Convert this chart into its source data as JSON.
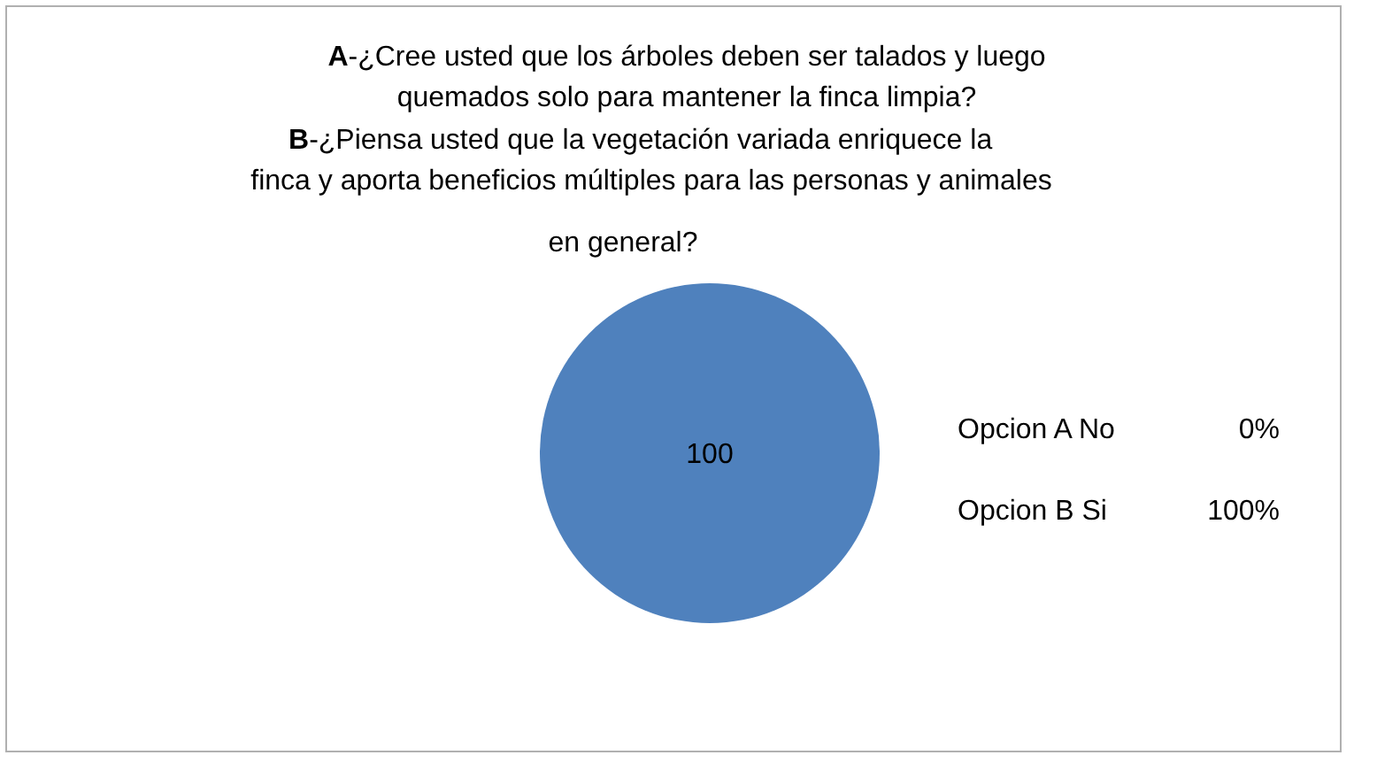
{
  "chart_data": {
    "type": "pie",
    "title": "A-¿Cree usted que los árboles deben ser talados y luego\nquemados solo para mantener la finca limpia?\nB-¿Piensa usted que la vegetación variada enriquece la\nfinca y aporta beneficios múltiples para las personas y animales\nen general?",
    "categories": [
      "Opcion A No",
      "Opcion B Si"
    ],
    "values": [
      0,
      100
    ],
    "colors": [
      "#c0504d",
      "#4f81bd"
    ],
    "value_labels": [
      null,
      "100"
    ],
    "annotations": [
      "0%",
      "100%"
    ]
  }
}
